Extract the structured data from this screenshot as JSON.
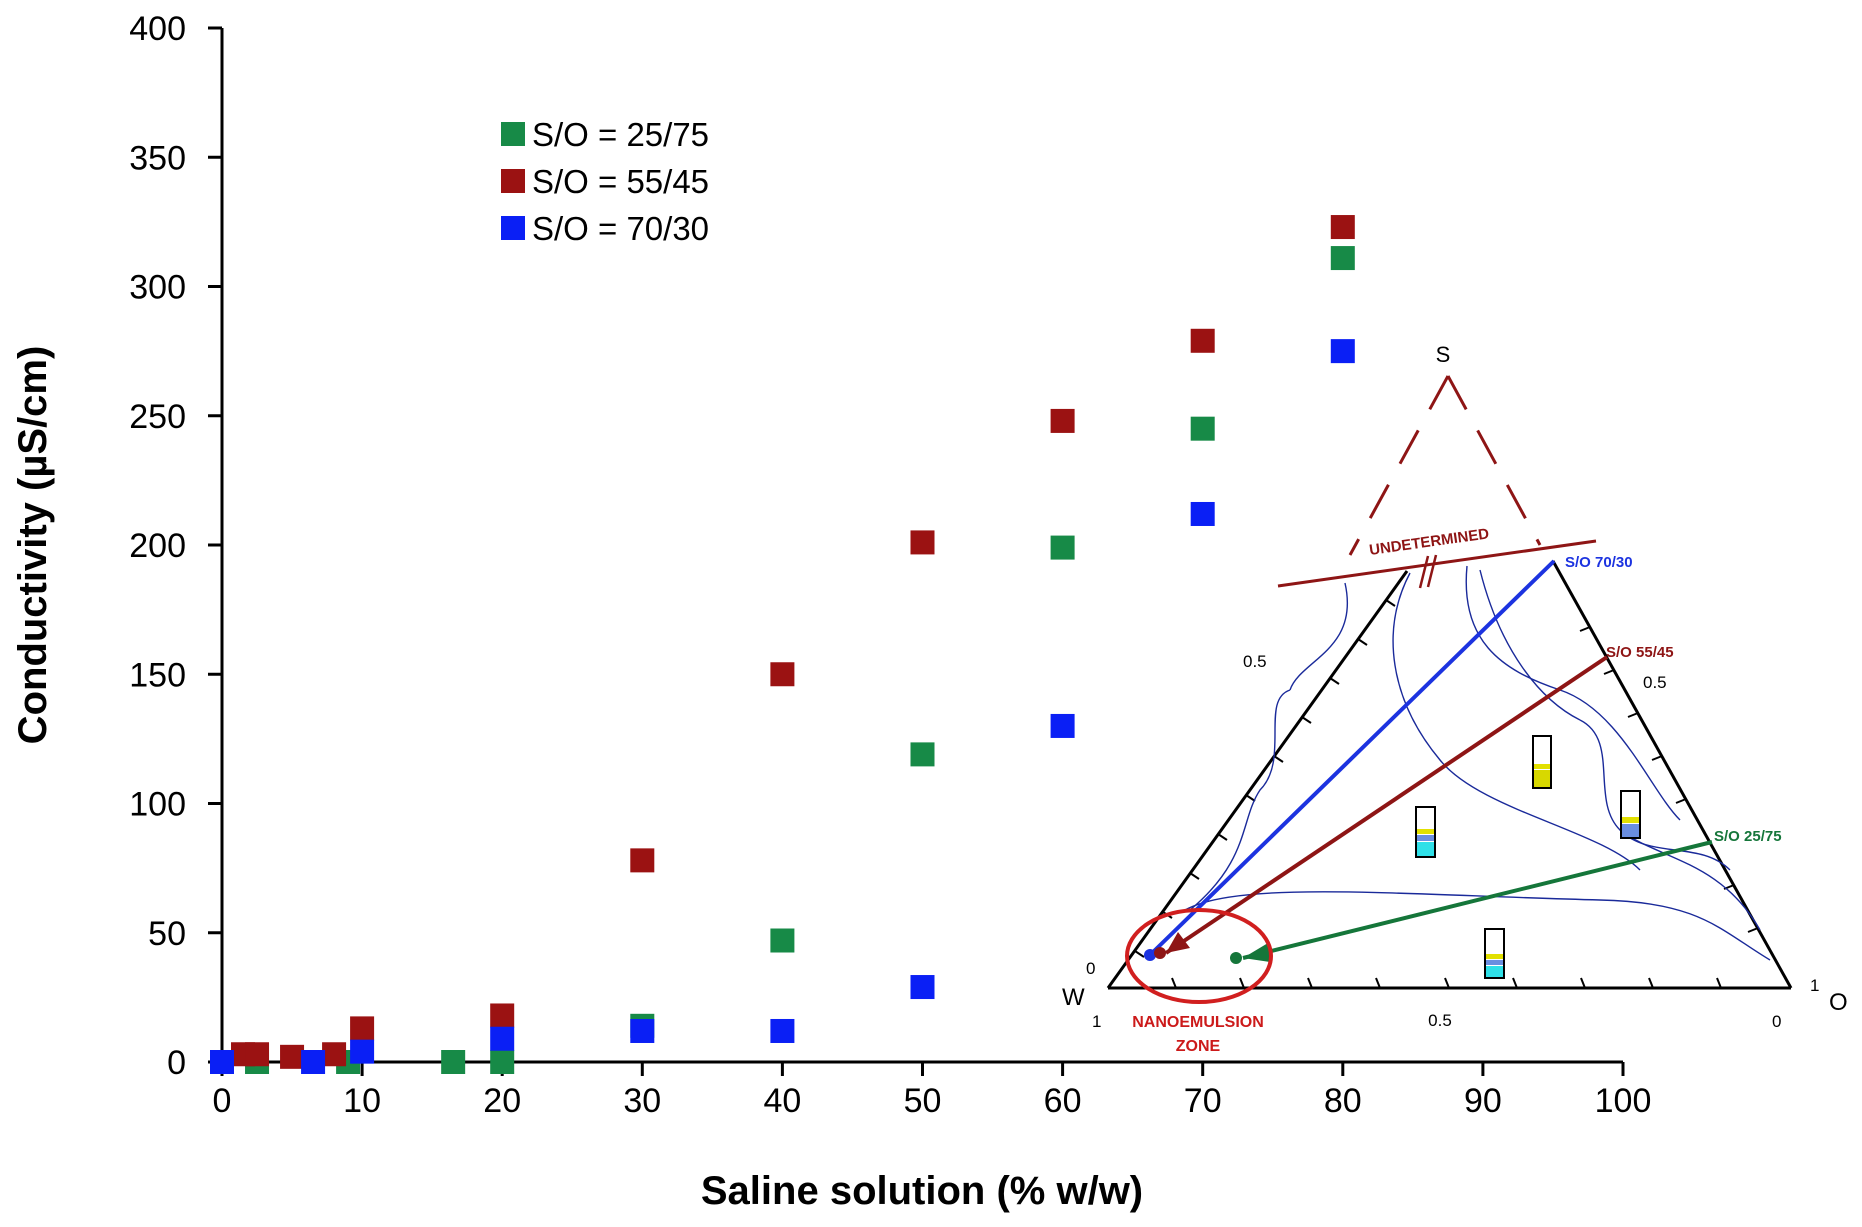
{
  "chart_data": {
    "type": "scatter",
    "title": "",
    "xlabel": "Saline solution (% w/w)",
    "ylabel": "Conductivity (µS/cm)",
    "xlim": [
      0,
      100
    ],
    "ylim": [
      0,
      400
    ],
    "x_ticks": [
      "0",
      "10",
      "20",
      "30",
      "40",
      "50",
      "60",
      "70",
      "80",
      "90",
      "100"
    ],
    "y_ticks": [
      "0",
      "50",
      "100",
      "150",
      "200",
      "250",
      "300",
      "350",
      "400"
    ],
    "legend_position": "top-left",
    "series": [
      {
        "name": "S/O = 25/75",
        "color": "#178a47",
        "points": [
          [
            2.5,
            0
          ],
          [
            9,
            0
          ],
          [
            16.5,
            0
          ],
          [
            20,
            0
          ],
          [
            30,
            14
          ],
          [
            40,
            47
          ],
          [
            50,
            119
          ],
          [
            60,
            199
          ],
          [
            70,
            245
          ],
          [
            80,
            311
          ]
        ]
      },
      {
        "name": "S/O = 55/45",
        "color": "#9b1212",
        "points": [
          [
            1.5,
            3
          ],
          [
            2.5,
            3
          ],
          [
            5,
            2
          ],
          [
            8,
            3
          ],
          [
            10,
            13
          ],
          [
            20,
            18
          ],
          [
            30,
            78
          ],
          [
            40,
            150
          ],
          [
            50,
            201
          ],
          [
            60,
            248
          ],
          [
            70,
            279
          ],
          [
            80,
            323
          ]
        ]
      },
      {
        "name": "S/O = 70/30",
        "color": "#0a1ff5",
        "points": [
          [
            0,
            0
          ],
          [
            6.5,
            0
          ],
          [
            10,
            4
          ],
          [
            20,
            9
          ],
          [
            30,
            12
          ],
          [
            40,
            12
          ],
          [
            50,
            29
          ],
          [
            60,
            130
          ],
          [
            70,
            212
          ],
          [
            80,
            275
          ]
        ]
      }
    ],
    "inset": {
      "type": "ternary-phase-diagram",
      "vertex_labels": {
        "top": "S",
        "left": "W",
        "right": "O"
      },
      "tick_labels": {
        "left_mid": "0.5",
        "right_mid": "0.5",
        "bottom_mid": "0.5",
        "left_zero": "0",
        "bottom_left": "1",
        "bottom_right": "0",
        "right_one": "1"
      },
      "undetermined_label": "UNDETERMINED",
      "dilution_lines": [
        {
          "name": "S/O 70/30",
          "color": "#1c33e0"
        },
        {
          "name": "S/O 55/45",
          "color": "#8e1515"
        },
        {
          "name": "S/O 25/75",
          "color": "#15763a"
        }
      ],
      "zone_label_line1": "NANOEMULSION",
      "zone_label_line2": "ZONE",
      "zone_color": "#d11f1f"
    }
  }
}
